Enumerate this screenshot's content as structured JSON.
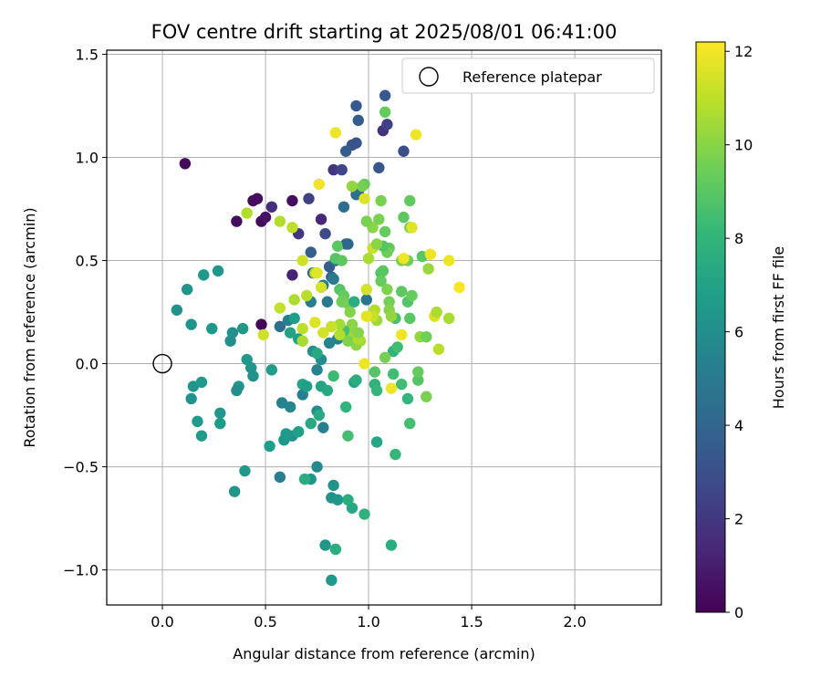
{
  "chart_data": {
    "type": "scatter",
    "title": "FOV centre drift starting at 2025/08/01 06:41:00",
    "xlabel": "Angular distance from reference (arcmin)",
    "ylabel": "Rotation from reference (arcmin)",
    "xlim": [
      -0.27,
      2.42
    ],
    "ylim": [
      -1.17,
      1.52
    ],
    "xticks": [
      0.0,
      0.5,
      1.0,
      1.5,
      2.0
    ],
    "xtick_labels": [
      "0.0",
      "0.5",
      "1.0",
      "1.5",
      "2.0"
    ],
    "yticks": [
      -1.0,
      -0.5,
      0.0,
      0.5,
      1.0,
      1.5
    ],
    "ytick_labels": [
      "−1.0",
      "−0.5",
      "0.0",
      "0.5",
      "1.0",
      "1.5"
    ],
    "grid": true,
    "legend": {
      "placement": "top-right",
      "entries": [
        "Reference platepar"
      ]
    },
    "reference_point": {
      "x": 0.0,
      "y": 0.0
    },
    "colorbar": {
      "label": "Hours from first FF file",
      "colormap": "viridis",
      "range": [
        0,
        12.2
      ],
      "ticks": [
        0,
        2,
        4,
        6,
        8,
        10,
        12
      ],
      "tick_labels": [
        "0",
        "2",
        "4",
        "6",
        "8",
        "10",
        "12"
      ]
    },
    "colormap_stops": [
      "#440154",
      "#482878",
      "#3e4989",
      "#31688e",
      "#26828e",
      "#1f9e89",
      "#35b779",
      "#6ece58",
      "#b5de2b",
      "#fde725"
    ],
    "points": [
      {
        "x": 0.11,
        "y": 0.97,
        "c": 0.3
      },
      {
        "x": 0.46,
        "y": 0.8,
        "c": 0.4
      },
      {
        "x": 0.44,
        "y": 0.79,
        "c": 0.4
      },
      {
        "x": 0.63,
        "y": 0.79,
        "c": 0.5
      },
      {
        "x": 0.36,
        "y": 0.69,
        "c": 0.4
      },
      {
        "x": 0.48,
        "y": 0.69,
        "c": 0.4
      },
      {
        "x": 0.5,
        "y": 0.71,
        "c": 0.6
      },
      {
        "x": 0.48,
        "y": 0.19,
        "c": 0.2
      },
      {
        "x": 0.63,
        "y": 0.43,
        "c": 1.2
      },
      {
        "x": 0.53,
        "y": 0.76,
        "c": 1.6
      },
      {
        "x": 0.66,
        "y": 0.63,
        "c": 1.9
      },
      {
        "x": 0.77,
        "y": 0.7,
        "c": 1.4
      },
      {
        "x": 0.71,
        "y": 0.8,
        "c": 2.4
      },
      {
        "x": 0.83,
        "y": 0.94,
        "c": 1.9
      },
      {
        "x": 0.87,
        "y": 0.94,
        "c": 2.6
      },
      {
        "x": 1.07,
        "y": 1.13,
        "c": 1.8
      },
      {
        "x": 1.09,
        "y": 1.16,
        "c": 2.4
      },
      {
        "x": 0.79,
        "y": 0.63,
        "c": 2.8
      },
      {
        "x": 0.94,
        "y": 1.25,
        "c": 3.5
      },
      {
        "x": 1.08,
        "y": 1.3,
        "c": 3.4
      },
      {
        "x": 0.95,
        "y": 1.18,
        "c": 3.6
      },
      {
        "x": 0.92,
        "y": 1.06,
        "c": 3.3
      },
      {
        "x": 0.94,
        "y": 1.07,
        "c": 3.2
      },
      {
        "x": 0.89,
        "y": 1.03,
        "c": 3.6
      },
      {
        "x": 1.05,
        "y": 0.95,
        "c": 3.3
      },
      {
        "x": 1.17,
        "y": 1.03,
        "c": 3.0
      },
      {
        "x": 0.95,
        "y": 0.83,
        "c": 3.8
      },
      {
        "x": 0.94,
        "y": 0.82,
        "c": 4.4
      },
      {
        "x": 0.88,
        "y": 0.76,
        "c": 4.3
      },
      {
        "x": 0.81,
        "y": 0.47,
        "c": 3.6
      },
      {
        "x": 0.82,
        "y": 0.42,
        "c": 4.1
      },
      {
        "x": 0.72,
        "y": 0.54,
        "c": 3.7
      },
      {
        "x": 0.73,
        "y": 0.44,
        "c": 4.0
      },
      {
        "x": 0.84,
        "y": 0.5,
        "c": 4.6
      },
      {
        "x": 0.89,
        "y": 0.58,
        "c": 4.4
      },
      {
        "x": 0.78,
        "y": 0.38,
        "c": 5.0
      },
      {
        "x": 0.83,
        "y": 0.41,
        "c": 5.0
      },
      {
        "x": 0.8,
        "y": 0.3,
        "c": 5.0
      },
      {
        "x": 0.72,
        "y": 0.3,
        "c": 5.2
      },
      {
        "x": 0.57,
        "y": 0.18,
        "c": 4.5
      },
      {
        "x": 0.61,
        "y": 0.21,
        "c": 5.3
      },
      {
        "x": 0.99,
        "y": 0.31,
        "c": 4.8
      },
      {
        "x": 0.85,
        "y": 0.12,
        "c": 5.3
      },
      {
        "x": 0.81,
        "y": 0.1,
        "c": 5.5
      },
      {
        "x": 0.73,
        "y": 0.06,
        "c": 6.0
      },
      {
        "x": 0.75,
        "y": -0.03,
        "c": 5.4
      },
      {
        "x": 0.77,
        "y": 0.02,
        "c": 5.9
      },
      {
        "x": 0.68,
        "y": -0.15,
        "c": 5.3
      },
      {
        "x": 0.62,
        "y": -0.21,
        "c": 5.6
      },
      {
        "x": 0.58,
        "y": -0.19,
        "c": 5.4
      },
      {
        "x": 0.75,
        "y": -0.23,
        "c": 6.0
      },
      {
        "x": 0.78,
        "y": -0.31,
        "c": 5.3
      },
      {
        "x": 0.63,
        "y": -0.35,
        "c": 6.2
      },
      {
        "x": 0.59,
        "y": -0.37,
        "c": 6.4
      },
      {
        "x": 0.75,
        "y": -0.5,
        "c": 5.7
      },
      {
        "x": 0.57,
        "y": -0.55,
        "c": 5.2
      },
      {
        "x": 0.72,
        "y": -0.56,
        "c": 6.4
      },
      {
        "x": 0.69,
        "y": -0.56,
        "c": 7.5
      },
      {
        "x": 0.83,
        "y": -0.59,
        "c": 6.2
      },
      {
        "x": 0.82,
        "y": -0.65,
        "c": 6.2
      },
      {
        "x": 0.85,
        "y": -0.66,
        "c": 6.4
      },
      {
        "x": 0.9,
        "y": -0.66,
        "c": 7.5
      },
      {
        "x": 0.92,
        "y": -0.7,
        "c": 7.3
      },
      {
        "x": 0.98,
        "y": -0.73,
        "c": 7.8
      },
      {
        "x": 0.79,
        "y": -0.88,
        "c": 6.4
      },
      {
        "x": 0.84,
        "y": -0.9,
        "c": 7.6
      },
      {
        "x": 1.11,
        "y": -0.88,
        "c": 7.6
      },
      {
        "x": 0.82,
        "y": -1.05,
        "c": 6.5
      },
      {
        "x": 0.07,
        "y": 0.26,
        "c": 6.1
      },
      {
        "x": 0.12,
        "y": 0.36,
        "c": 6.3
      },
      {
        "x": 0.2,
        "y": 0.43,
        "c": 6.5
      },
      {
        "x": 0.27,
        "y": 0.45,
        "c": 6.4
      },
      {
        "x": 0.14,
        "y": 0.19,
        "c": 6.3
      },
      {
        "x": 0.24,
        "y": 0.17,
        "c": 6.4
      },
      {
        "x": 0.34,
        "y": 0.15,
        "c": 6.1
      },
      {
        "x": 0.39,
        "y": 0.17,
        "c": 6.5
      },
      {
        "x": 0.33,
        "y": 0.11,
        "c": 6.0
      },
      {
        "x": 0.41,
        "y": 0.02,
        "c": 6.5
      },
      {
        "x": 0.43,
        "y": -0.02,
        "c": 6.3
      },
      {
        "x": 0.44,
        "y": -0.06,
        "c": 6.2
      },
      {
        "x": 0.37,
        "y": -0.11,
        "c": 6.4
      },
      {
        "x": 0.36,
        "y": -0.13,
        "c": 6.0
      },
      {
        "x": 0.15,
        "y": -0.11,
        "c": 6.3
      },
      {
        "x": 0.19,
        "y": -0.09,
        "c": 6.6
      },
      {
        "x": 0.14,
        "y": -0.17,
        "c": 6.2
      },
      {
        "x": 0.17,
        "y": -0.28,
        "c": 6.6
      },
      {
        "x": 0.19,
        "y": -0.35,
        "c": 6.7
      },
      {
        "x": 0.28,
        "y": -0.24,
        "c": 6.4
      },
      {
        "x": 0.28,
        "y": -0.29,
        "c": 6.7
      },
      {
        "x": 0.4,
        "y": -0.52,
        "c": 6.5
      },
      {
        "x": 0.35,
        "y": -0.62,
        "c": 6.3
      },
      {
        "x": 0.52,
        "y": -0.4,
        "c": 6.8
      },
      {
        "x": 0.53,
        "y": -0.03,
        "c": 6.8
      },
      {
        "x": 0.6,
        "y": -0.34,
        "c": 6.7
      },
      {
        "x": 0.66,
        "y": -0.33,
        "c": 6.9
      },
      {
        "x": 0.72,
        "y": -0.29,
        "c": 7.3
      },
      {
        "x": 0.68,
        "y": -0.1,
        "c": 7.1
      },
      {
        "x": 0.7,
        "y": -0.11,
        "c": 6.9
      },
      {
        "x": 0.62,
        "y": 0.15,
        "c": 7.0
      },
      {
        "x": 0.66,
        "y": 0.12,
        "c": 6.9
      },
      {
        "x": 0.64,
        "y": 0.22,
        "c": 6.8
      },
      {
        "x": 0.75,
        "y": 0.05,
        "c": 7.3
      },
      {
        "x": 0.77,
        "y": -0.11,
        "c": 7.0
      },
      {
        "x": 0.76,
        "y": -0.25,
        "c": 7.4
      },
      {
        "x": 0.8,
        "y": -0.13,
        "c": 7.3
      },
      {
        "x": 0.93,
        "y": -0.09,
        "c": 7.1
      },
      {
        "x": 0.94,
        "y": -0.08,
        "c": 7.6
      },
      {
        "x": 1.04,
        "y": -0.38,
        "c": 7.2
      },
      {
        "x": 0.89,
        "y": -0.21,
        "c": 7.9
      },
      {
        "x": 0.9,
        "y": -0.35,
        "c": 8.5
      },
      {
        "x": 0.83,
        "y": -0.06,
        "c": 8.3
      },
      {
        "x": 1.03,
        "y": -0.1,
        "c": 7.8
      },
      {
        "x": 1.04,
        "y": -0.13,
        "c": 8.1
      },
      {
        "x": 1.13,
        "y": -0.44,
        "c": 8.1
      },
      {
        "x": 1.16,
        "y": -0.1,
        "c": 8.4
      },
      {
        "x": 1.19,
        "y": -0.17,
        "c": 8.0
      },
      {
        "x": 1.2,
        "y": -0.29,
        "c": 8.5
      },
      {
        "x": 1.12,
        "y": -0.05,
        "c": 8.4
      },
      {
        "x": 1.24,
        "y": -0.08,
        "c": 8.9
      },
      {
        "x": 1.24,
        "y": -0.04,
        "c": 9.3
      },
      {
        "x": 1.28,
        "y": -0.16,
        "c": 9.7
      },
      {
        "x": 1.12,
        "y": 0.06,
        "c": 7.9
      },
      {
        "x": 1.14,
        "y": 0.08,
        "c": 8.4
      },
      {
        "x": 1.13,
        "y": 0.22,
        "c": 8.6
      },
      {
        "x": 1.19,
        "y": 0.3,
        "c": 8.9
      },
      {
        "x": 1.2,
        "y": 0.22,
        "c": 9.0
      },
      {
        "x": 1.21,
        "y": 0.33,
        "c": 9.3
      },
      {
        "x": 1.16,
        "y": 0.35,
        "c": 9.1
      },
      {
        "x": 1.25,
        "y": 0.13,
        "c": 10.2
      },
      {
        "x": 1.28,
        "y": 0.13,
        "c": 9.5
      },
      {
        "x": 1.29,
        "y": 0.46,
        "c": 10.3
      },
      {
        "x": 1.26,
        "y": 0.52,
        "c": 9.0
      },
      {
        "x": 1.19,
        "y": 0.5,
        "c": 9.5
      },
      {
        "x": 1.16,
        "y": 0.5,
        "c": 9.7
      },
      {
        "x": 1.2,
        "y": 0.79,
        "c": 9.2
      },
      {
        "x": 1.2,
        "y": 0.66,
        "c": 9.7
      },
      {
        "x": 1.17,
        "y": 0.71,
        "c": 9.1
      },
      {
        "x": 1.1,
        "y": 0.56,
        "c": 9.2
      },
      {
        "x": 1.09,
        "y": 0.54,
        "c": 9.5
      },
      {
        "x": 1.08,
        "y": 0.64,
        "c": 9.3
      },
      {
        "x": 1.05,
        "y": 0.7,
        "c": 9.7
      },
      {
        "x": 1.06,
        "y": 0.79,
        "c": 9.7
      },
      {
        "x": 1.08,
        "y": 1.22,
        "c": 9.3
      },
      {
        "x": 1.07,
        "y": 0.57,
        "c": 8.9
      },
      {
        "x": 1.06,
        "y": 0.44,
        "c": 8.7
      },
      {
        "x": 1.07,
        "y": 0.45,
        "c": 9.0
      },
      {
        "x": 1.06,
        "y": 0.4,
        "c": 9.3
      },
      {
        "x": 1.09,
        "y": 0.36,
        "c": 9.8
      },
      {
        "x": 1.1,
        "y": 0.3,
        "c": 9.6
      },
      {
        "x": 1.1,
        "y": 0.26,
        "c": 9.9
      },
      {
        "x": 1.11,
        "y": 0.23,
        "c": 10.2
      },
      {
        "x": 1.04,
        "y": 0.21,
        "c": 10.4
      },
      {
        "x": 1.03,
        "y": 0.26,
        "c": 10.8
      },
      {
        "x": 1.02,
        "y": 0.23,
        "c": 11.2
      },
      {
        "x": 0.99,
        "y": 0.23,
        "c": 11.7
      },
      {
        "x": 0.99,
        "y": 0.36,
        "c": 11.4
      },
      {
        "x": 1.0,
        "y": 0.51,
        "c": 10.6
      },
      {
        "x": 1.02,
        "y": 0.56,
        "c": 11.2
      },
      {
        "x": 1.02,
        "y": 0.66,
        "c": 10.0
      },
      {
        "x": 0.99,
        "y": 0.69,
        "c": 9.7
      },
      {
        "x": 0.98,
        "y": 0.8,
        "c": 11.6
      },
      {
        "x": 0.98,
        "y": 0.87,
        "c": 9.3
      },
      {
        "x": 0.97,
        "y": 0.86,
        "c": 9.6
      },
      {
        "x": 0.92,
        "y": 0.86,
        "c": 10.2
      },
      {
        "x": 0.85,
        "y": 0.57,
        "c": 9.0
      },
      {
        "x": 0.84,
        "y": 0.51,
        "c": 8.9
      },
      {
        "x": 0.87,
        "y": 0.5,
        "c": 9.1
      },
      {
        "x": 0.86,
        "y": 0.36,
        "c": 8.9
      },
      {
        "x": 0.88,
        "y": 0.33,
        "c": 9.3
      },
      {
        "x": 0.87,
        "y": 0.3,
        "c": 9.5
      },
      {
        "x": 0.9,
        "y": 0.29,
        "c": 9.6
      },
      {
        "x": 0.91,
        "y": 0.25,
        "c": 9.9
      },
      {
        "x": 0.92,
        "y": 0.19,
        "c": 10.0
      },
      {
        "x": 0.91,
        "y": 0.15,
        "c": 10.2
      },
      {
        "x": 0.92,
        "y": 0.12,
        "c": 10.4
      },
      {
        "x": 0.96,
        "y": 0.11,
        "c": 10.5
      },
      {
        "x": 0.94,
        "y": 0.09,
        "c": 10.1
      },
      {
        "x": 0.9,
        "y": 0.11,
        "c": 9.8
      },
      {
        "x": 0.88,
        "y": 0.16,
        "c": 8.5
      },
      {
        "x": 0.86,
        "y": 0.19,
        "c": 10.5
      },
      {
        "x": 0.86,
        "y": 0.14,
        "c": 10.8
      },
      {
        "x": 0.82,
        "y": 0.18,
        "c": 11.2
      },
      {
        "x": 0.78,
        "y": 0.15,
        "c": 11.4
      },
      {
        "x": 0.74,
        "y": 0.2,
        "c": 11.6
      },
      {
        "x": 0.68,
        "y": 0.17,
        "c": 11.0
      },
      {
        "x": 0.68,
        "y": 0.11,
        "c": 10.6
      },
      {
        "x": 0.57,
        "y": 0.27,
        "c": 11.1
      },
      {
        "x": 0.64,
        "y": 0.31,
        "c": 10.7
      },
      {
        "x": 0.7,
        "y": 0.33,
        "c": 10.9
      },
      {
        "x": 0.74,
        "y": 0.44,
        "c": 10.7
      },
      {
        "x": 0.77,
        "y": 0.37,
        "c": 11.4
      },
      {
        "x": 0.75,
        "y": 0.44,
        "c": 11.7
      },
      {
        "x": 0.68,
        "y": 0.5,
        "c": 11.3
      },
      {
        "x": 0.63,
        "y": 0.66,
        "c": 11.0
      },
      {
        "x": 0.57,
        "y": 0.69,
        "c": 10.8
      },
      {
        "x": 0.41,
        "y": 0.73,
        "c": 10.8
      },
      {
        "x": 0.49,
        "y": 0.14,
        "c": 11.3
      },
      {
        "x": 0.76,
        "y": 0.87,
        "c": 11.9
      },
      {
        "x": 0.84,
        "y": 1.12,
        "c": 11.9
      },
      {
        "x": 1.23,
        "y": 1.11,
        "c": 11.9
      },
      {
        "x": 1.21,
        "y": 0.66,
        "c": 11.6
      },
      {
        "x": 1.17,
        "y": 0.51,
        "c": 11.9
      },
      {
        "x": 1.3,
        "y": 0.53,
        "c": 11.9
      },
      {
        "x": 1.39,
        "y": 0.5,
        "c": 11.9
      },
      {
        "x": 1.44,
        "y": 0.37,
        "c": 12.1
      },
      {
        "x": 1.32,
        "y": 0.23,
        "c": 11.5
      },
      {
        "x": 1.33,
        "y": 0.25,
        "c": 10.7
      },
      {
        "x": 1.39,
        "y": 0.22,
        "c": 10.6
      },
      {
        "x": 1.34,
        "y": 0.07,
        "c": 10.9
      },
      {
        "x": 1.16,
        "y": 0.14,
        "c": 11.9
      },
      {
        "x": 1.11,
        "y": -0.12,
        "c": 11.9
      },
      {
        "x": 1.08,
        "y": 0.03,
        "c": 9.6
      },
      {
        "x": 0.98,
        "y": 0.0,
        "c": 11.9
      },
      {
        "x": 0.95,
        "y": 0.12,
        "c": 10.7
      },
      {
        "x": 0.95,
        "y": 0.15,
        "c": 9.9
      },
      {
        "x": 1.03,
        "y": -0.04,
        "c": 8.9
      },
      {
        "x": 1.04,
        "y": 0.58,
        "c": 10.0
      },
      {
        "x": 0.93,
        "y": 0.3,
        "c": 7.6
      },
      {
        "x": 0.9,
        "y": 0.58,
        "c": 4.0
      }
    ]
  }
}
